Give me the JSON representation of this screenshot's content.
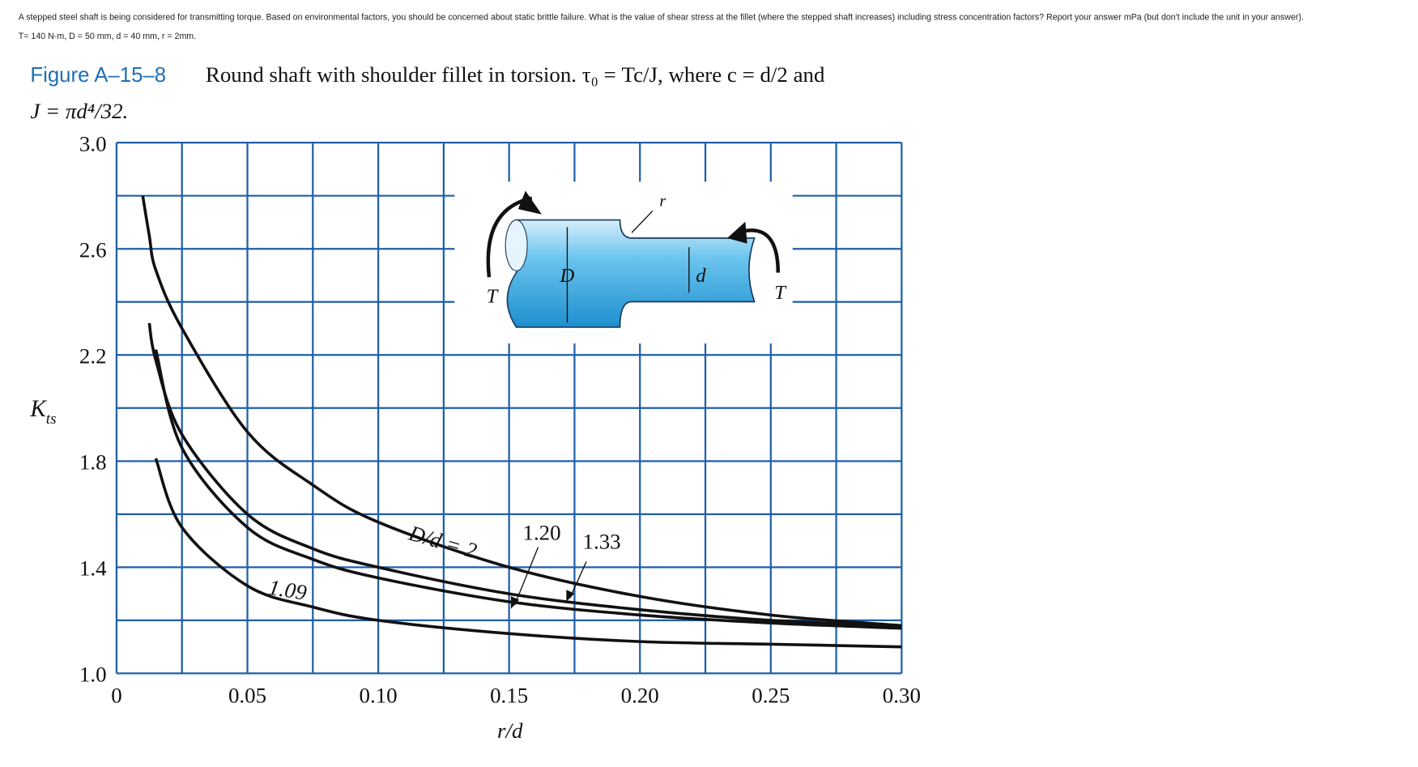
{
  "question": {
    "line1": "A stepped steel shaft is being considered for transmitting torque. Based on environmental factors, you should be concerned about static brittle failure. What is the value of shear stress at the fillet (where the stepped shaft increases) including stress concentration factors? Report your answer mPa (but don't include the unit in your answer).",
    "line2": "T= 140 N-m, D = 50 mm, d = 40 mm, r = 2mm."
  },
  "caption": {
    "figure_label": "Figure A–15–8",
    "line1": "Round shaft with shoulder fillet in torsion. τ₀ = Tc/J, where c = d/2 and",
    "line2": "J = πd⁴/32."
  },
  "diagram_labels": {
    "torque_left": "T",
    "torque_right": "T",
    "large_diameter": "D",
    "small_diameter": "d",
    "fillet_radius": "r"
  },
  "chart_data": {
    "type": "line",
    "x_label": "r/d",
    "y_label": "K",
    "y_label_sub": "ts",
    "x": [
      0.01,
      0.0125,
      0.015,
      0.025,
      0.05,
      0.075,
      0.1,
      0.15,
      0.2,
      0.25,
      0.3
    ],
    "series": [
      {
        "name": "D/d = 2",
        "color": "#111111",
        "values": [
          2.8,
          2.65,
          2.52,
          2.3,
          1.91,
          1.71,
          1.57,
          1.4,
          1.29,
          1.22,
          1.18
        ]
      },
      {
        "name": "1.33",
        "color": "#111111",
        "values": [
          null,
          2.32,
          2.18,
          1.9,
          1.6,
          1.47,
          1.4,
          1.3,
          1.24,
          1.2,
          1.18
        ]
      },
      {
        "name": "1.20",
        "color": "#111111",
        "values": [
          null,
          null,
          2.22,
          1.85,
          1.55,
          1.43,
          1.36,
          1.27,
          1.22,
          1.19,
          1.17
        ]
      },
      {
        "name": "1.09",
        "color": "#111111",
        "values": [
          null,
          null,
          1.81,
          1.55,
          1.33,
          1.25,
          1.2,
          1.15,
          1.12,
          1.11,
          1.1
        ]
      }
    ],
    "xlim": [
      0,
      0.3
    ],
    "ylim": [
      1,
      3
    ],
    "xticks": [
      0,
      0.05,
      {
        "value": 0.1,
        "label": "0.10"
      },
      0.15,
      {
        "value": 0.2,
        "label": "0.20"
      },
      0.25,
      {
        "value": 0.3,
        "label": "0.30"
      }
    ],
    "yticks": [
      {
        "value": 3,
        "label": "3.0"
      },
      2.6,
      2.2,
      1.8,
      1.4,
      {
        "value": 1,
        "label": "1.0"
      }
    ],
    "xgrid": [
      0.025,
      0.075,
      0.125,
      0.175,
      0.225,
      0.275
    ],
    "ygrid": [
      2.8,
      2.4,
      2.0,
      1.6,
      1.2
    ],
    "grid": true,
    "grid_color": "#1f5fa8"
  }
}
